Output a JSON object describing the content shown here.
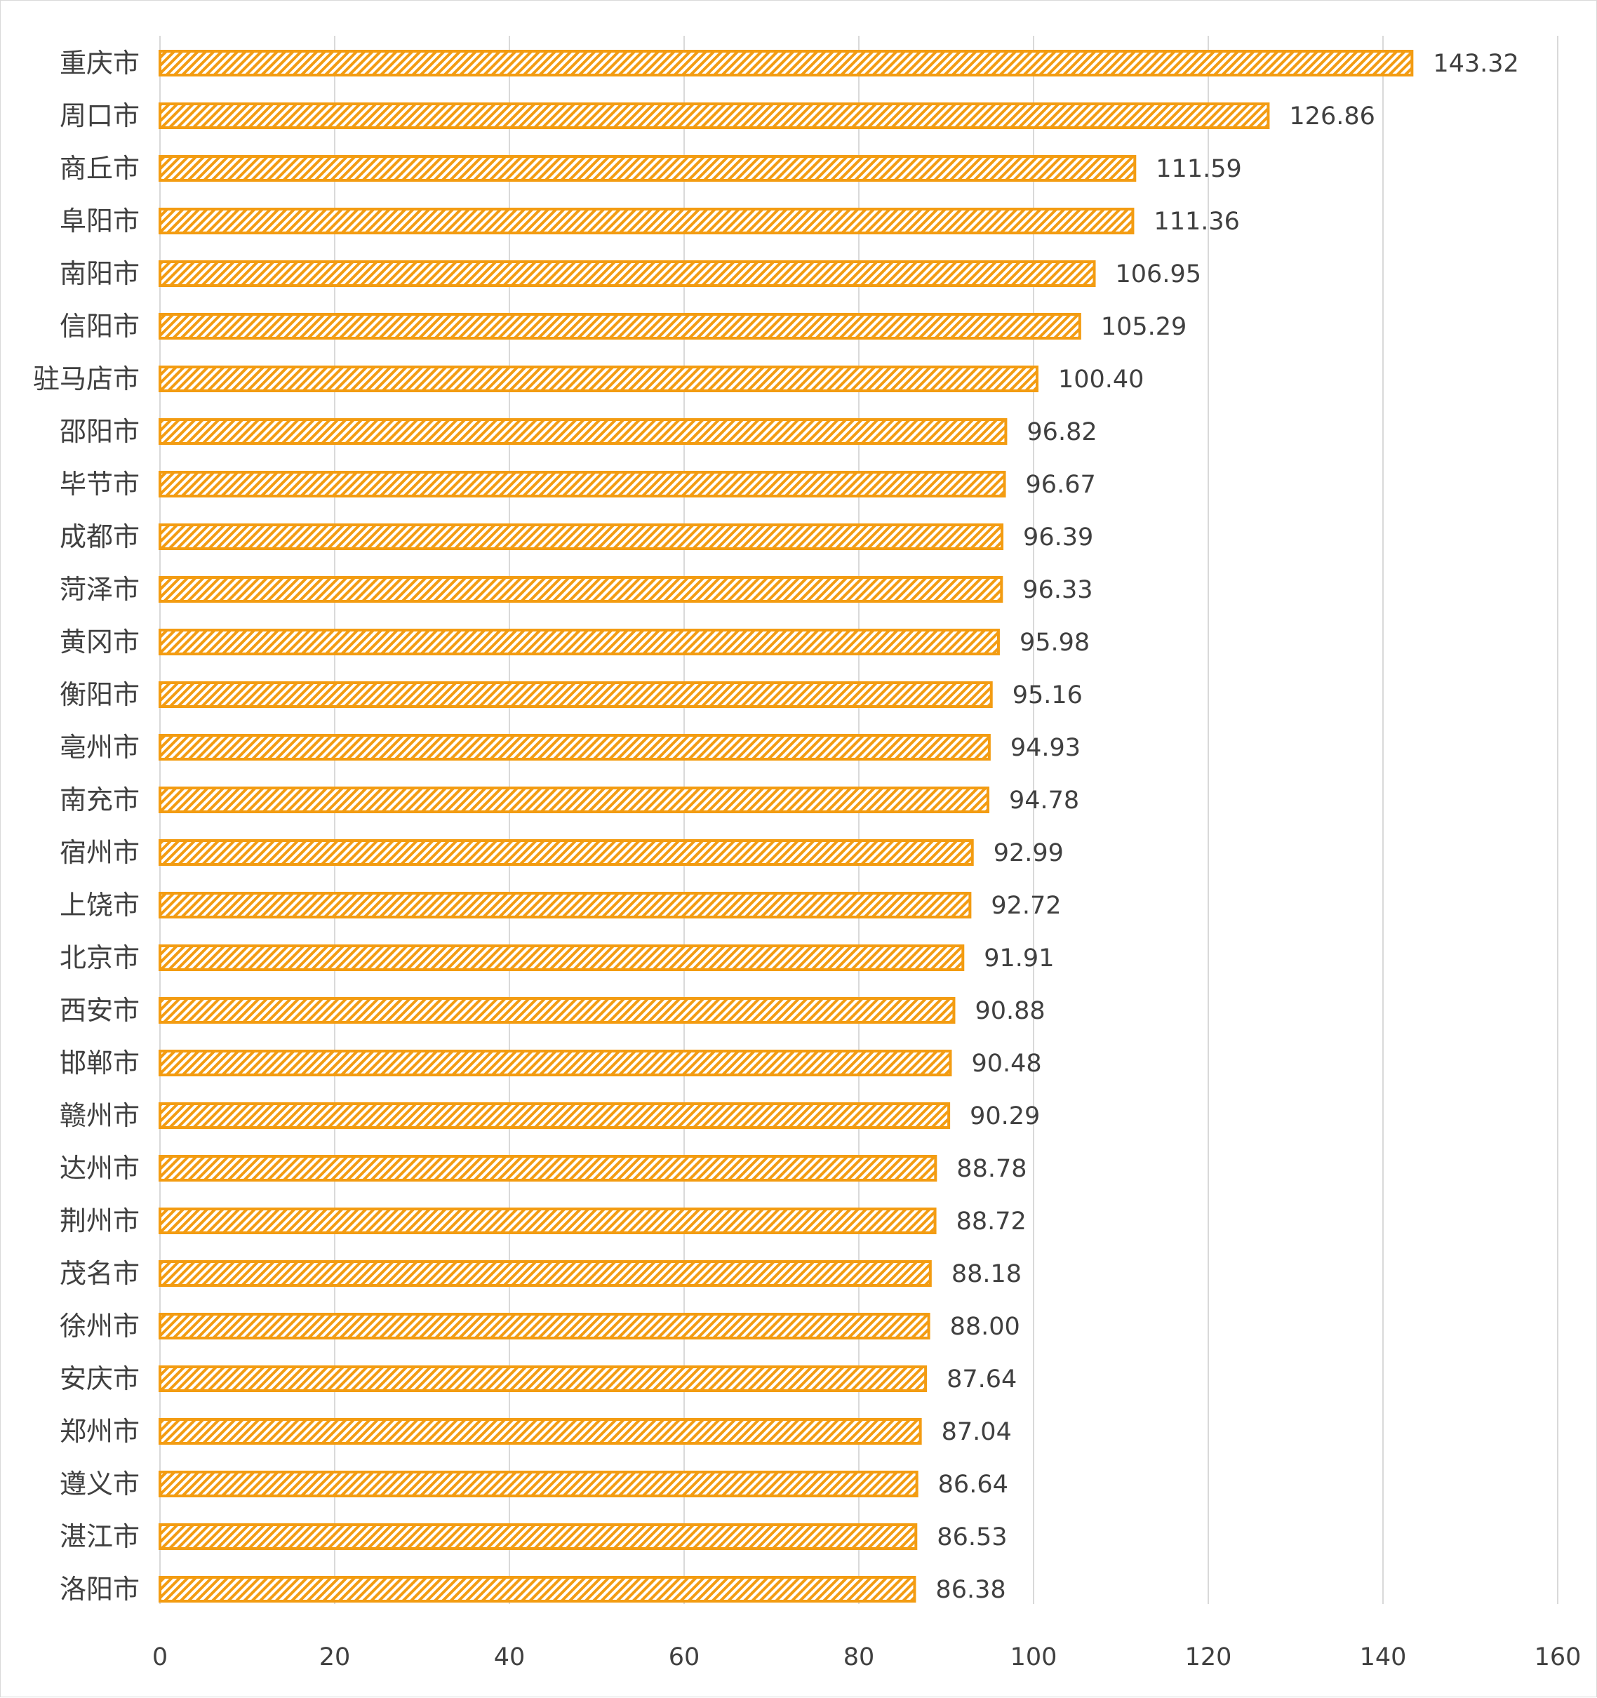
{
  "chart_data": {
    "type": "bar",
    "orientation": "horizontal",
    "title": "",
    "xlabel": "",
    "ylabel": "",
    "xlim": [
      0,
      160
    ],
    "x_ticks": [
      0,
      20,
      40,
      60,
      80,
      100,
      120,
      140,
      160
    ],
    "grid": "vertical",
    "legend": "none",
    "bar_color": "#f39c12",
    "bar_pattern": "diagonal-hatch",
    "categories": [
      "重庆市",
      "周口市",
      "商丘市",
      "阜阳市",
      "南阳市",
      "信阳市",
      "驻马店市",
      "邵阳市",
      "毕节市",
      "成都市",
      "菏泽市",
      "黄冈市",
      "衡阳市",
      "亳州市",
      "南充市",
      "宿州市",
      "上饶市",
      "北京市",
      "西安市",
      "邯郸市",
      "赣州市",
      "达州市",
      "荆州市",
      "茂名市",
      "徐州市",
      "安庆市",
      "郑州市",
      "遵义市",
      "湛江市",
      "洛阳市"
    ],
    "values": [
      143.32,
      126.86,
      111.59,
      111.36,
      106.95,
      105.29,
      100.4,
      96.82,
      96.67,
      96.39,
      96.33,
      95.98,
      95.16,
      94.93,
      94.78,
      92.99,
      92.72,
      91.91,
      90.88,
      90.48,
      90.29,
      88.78,
      88.72,
      88.18,
      88.0,
      87.64,
      87.04,
      86.64,
      86.53,
      86.38
    ],
    "value_labels": [
      "143.32",
      "126.86",
      "111.59",
      "111.36",
      "106.95",
      "105.29",
      "100.40",
      "96.82",
      "96.67",
      "96.39",
      "96.33",
      "95.98",
      "95.16",
      "94.93",
      "94.78",
      "92.99",
      "92.72",
      "91.91",
      "90.88",
      "90.48",
      "90.29",
      "88.78",
      "88.72",
      "88.18",
      "88.00",
      "87.64",
      "87.04",
      "86.64",
      "86.53",
      "86.38"
    ]
  }
}
